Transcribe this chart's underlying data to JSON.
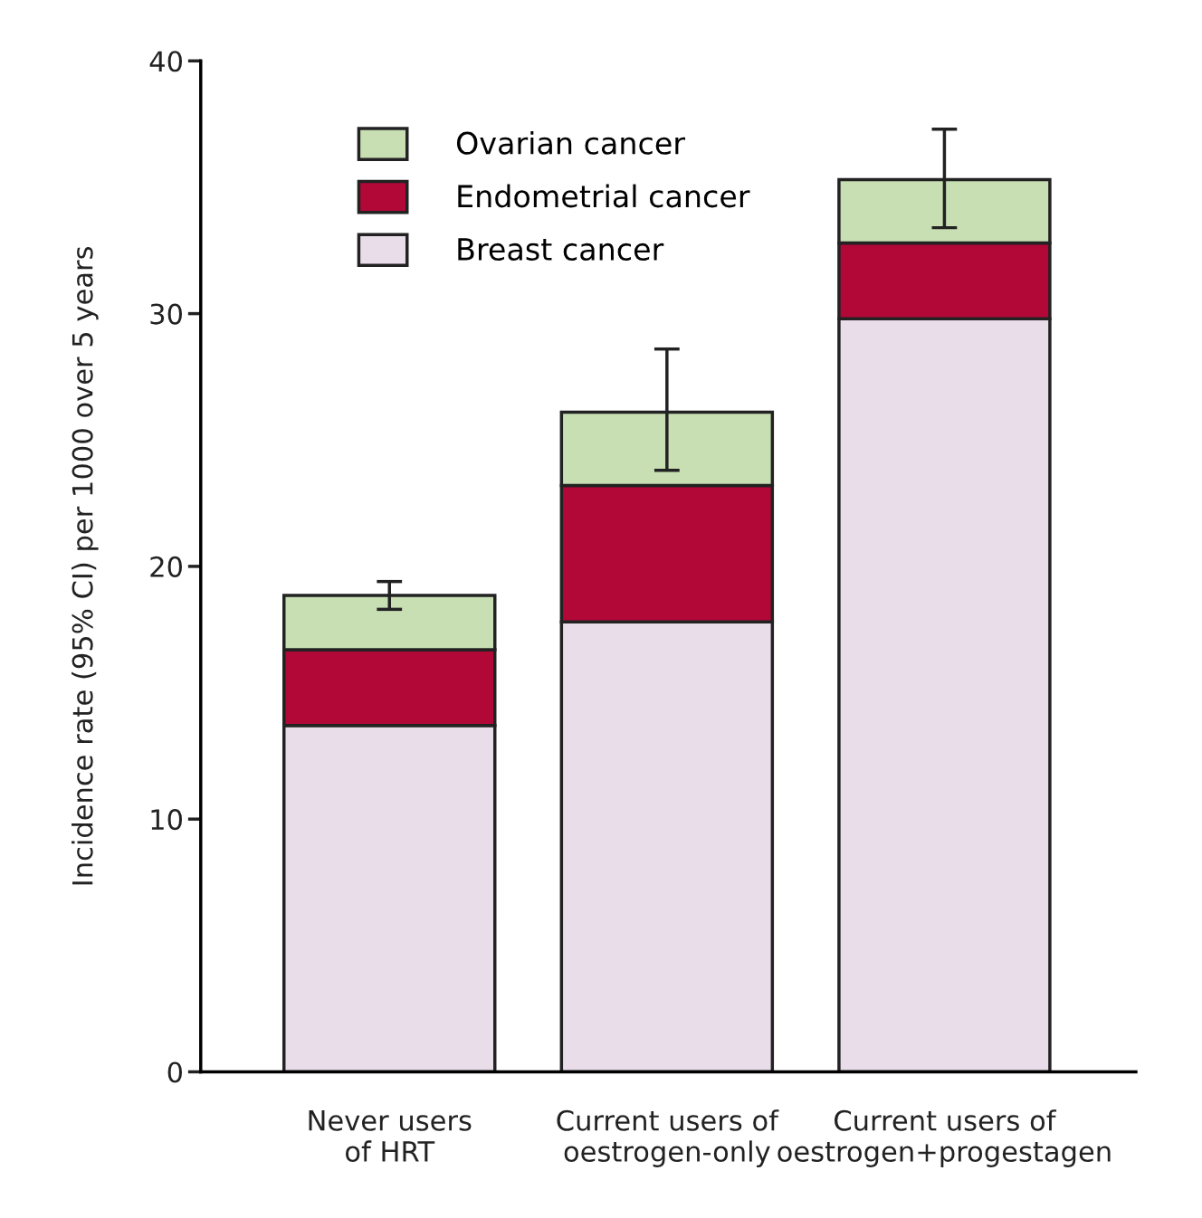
{
  "chart_data": {
    "type": "bar",
    "stacked": true,
    "ylabel": "Incidence rate (95% CI) per 1000 over 5 years",
    "categories": [
      "Never users\nof HRT",
      "Current users of\noestrogen-only",
      "Current users of\noestrogen+progestagen"
    ],
    "series": [
      {
        "name": "Breast cancer",
        "color": "#e8dde9",
        "values": [
          13.7,
          17.8,
          29.8
        ]
      },
      {
        "name": "Endometrial cancer",
        "color": "#b10838",
        "values": [
          3.0,
          5.4,
          3.0
        ]
      },
      {
        "name": "Ovarian cancer",
        "color": "#c8deb3",
        "values": [
          2.15,
          2.9,
          2.5
        ],
        "errors": [
          [
            18.3,
            19.4
          ],
          [
            23.8,
            28.6
          ],
          [
            33.4,
            37.3
          ]
        ]
      }
    ],
    "ylim": [
      0,
      40
    ],
    "yticks": [
      0,
      10,
      20,
      30,
      40
    ],
    "grid": false,
    "legend": "top left"
  }
}
